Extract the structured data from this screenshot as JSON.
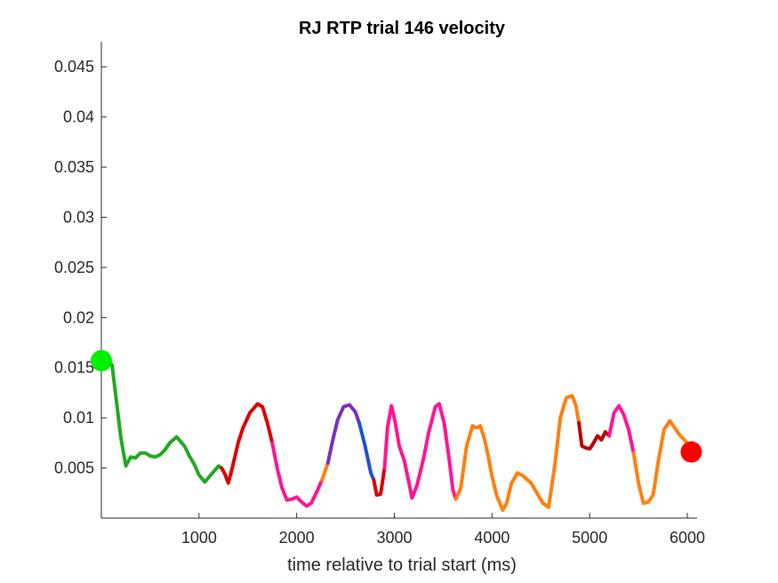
{
  "chart_data": {
    "type": "line",
    "title": "RJ  RTP trial 146 velocity",
    "xlabel": "time relative to trial start (ms)",
    "ylabel": "",
    "xlim": [
      0,
      6100
    ],
    "ylim": [
      0,
      0.0475
    ],
    "x_ticks": [
      1000,
      2000,
      3000,
      4000,
      5000,
      6000
    ],
    "x_tick_labels": [
      "1000",
      "2000",
      "3000",
      "4000",
      "5000",
      "6000"
    ],
    "y_ticks": [
      0.005,
      0.01,
      0.015,
      0.02,
      0.025,
      0.03,
      0.035,
      0.04,
      0.045
    ],
    "y_tick_labels": [
      "0.005",
      "0.01",
      "0.015",
      "0.02",
      "0.025",
      "0.03",
      "0.035",
      "0.04",
      "0.045"
    ],
    "grid": false,
    "axes_box": "left-bottom",
    "segments": [
      {
        "color": "#22a822",
        "points": [
          [
            0,
            0.0157
          ],
          [
            60,
            0.0161
          ],
          [
            110,
            0.0152
          ],
          [
            150,
            0.012
          ],
          [
            200,
            0.008
          ],
          [
            250,
            0.0052
          ],
          [
            300,
            0.0061
          ],
          [
            350,
            0.006
          ],
          [
            400,
            0.0065
          ],
          [
            450,
            0.0065
          ],
          [
            500,
            0.0062
          ],
          [
            550,
            0.0061
          ],
          [
            600,
            0.0063
          ],
          [
            650,
            0.0068
          ],
          [
            700,
            0.0075
          ],
          [
            770,
            0.0081
          ],
          [
            850,
            0.0072
          ],
          [
            900,
            0.0062
          ],
          [
            950,
            0.0054
          ],
          [
            1000,
            0.0043
          ],
          [
            1060,
            0.0036
          ],
          [
            1120,
            0.0043
          ],
          [
            1200,
            0.0052
          ],
          [
            1230,
            0.005
          ]
        ]
      },
      {
        "color": "#dd0000",
        "points": [
          [
            1230,
            0.005
          ],
          [
            1260,
            0.0045
          ],
          [
            1300,
            0.0035
          ],
          [
            1340,
            0.005
          ],
          [
            1400,
            0.0075
          ],
          [
            1450,
            0.009
          ]
        ]
      },
      {
        "color": "#dd0000",
        "points": [
          [
            1450,
            0.009
          ],
          [
            1520,
            0.0105
          ],
          [
            1600,
            0.0114
          ],
          [
            1650,
            0.0111
          ],
          [
            1700,
            0.0095
          ],
          [
            1750,
            0.0075
          ]
        ]
      },
      {
        "color": "#ff1493",
        "points": [
          [
            1750,
            0.0075
          ],
          [
            1800,
            0.005
          ],
          [
            1850,
            0.003
          ],
          [
            1900,
            0.0018
          ],
          [
            1950,
            0.0019
          ],
          [
            2000,
            0.0021
          ],
          [
            2050,
            0.0016
          ],
          [
            2100,
            0.0012
          ],
          [
            2150,
            0.0015
          ],
          [
            2200,
            0.0025
          ],
          [
            2260,
            0.0038
          ]
        ]
      },
      {
        "color": "#ff7f0e",
        "points": [
          [
            2260,
            0.0038
          ],
          [
            2320,
            0.0055
          ]
        ]
      },
      {
        "color": "#7b2fbe",
        "points": [
          [
            2320,
            0.0055
          ],
          [
            2370,
            0.0078
          ],
          [
            2420,
            0.0098
          ],
          [
            2480,
            0.0111
          ],
          [
            2540,
            0.0113
          ],
          [
            2600,
            0.0106
          ],
          [
            2640,
            0.0095
          ]
        ]
      },
      {
        "color": "#1f4fd8",
        "points": [
          [
            2640,
            0.0095
          ],
          [
            2700,
            0.0072
          ],
          [
            2760,
            0.0045
          ],
          [
            2790,
            0.0038
          ]
        ]
      },
      {
        "color": "#dd0000",
        "points": [
          [
            2790,
            0.0038
          ],
          [
            2820,
            0.0023
          ],
          [
            2860,
            0.0024
          ],
          [
            2900,
            0.005
          ]
        ]
      },
      {
        "color": "#ff1493",
        "points": [
          [
            2900,
            0.005
          ],
          [
            2930,
            0.009
          ],
          [
            2970,
            0.0112
          ],
          [
            3010,
            0.0095
          ],
          [
            3050,
            0.0072
          ],
          [
            3100,
            0.0058
          ],
          [
            3150,
            0.0035
          ],
          [
            3180,
            0.002
          ],
          [
            3230,
            0.0032
          ],
          [
            3300,
            0.006
          ],
          [
            3350,
            0.0085
          ],
          [
            3420,
            0.0111
          ],
          [
            3460,
            0.0114
          ],
          [
            3510,
            0.0095
          ],
          [
            3560,
            0.006
          ],
          [
            3600,
            0.0028
          ],
          [
            3630,
            0.0019
          ]
        ]
      },
      {
        "color": "#ff7f0e",
        "points": [
          [
            3630,
            0.0019
          ],
          [
            3680,
            0.003
          ],
          [
            3740,
            0.0072
          ],
          [
            3800,
            0.0092
          ],
          [
            3840,
            0.009
          ],
          [
            3880,
            0.0092
          ],
          [
            3920,
            0.008
          ],
          [
            3960,
            0.0062
          ],
          [
            4000,
            0.0042
          ],
          [
            4050,
            0.0022
          ],
          [
            4110,
            0.0008
          ],
          [
            4150,
            0.0015
          ],
          [
            4200,
            0.0035
          ],
          [
            4260,
            0.0045
          ],
          [
            4320,
            0.0042
          ],
          [
            4400,
            0.0035
          ],
          [
            4460,
            0.0025
          ],
          [
            4520,
            0.0015
          ],
          [
            4580,
            0.0011
          ],
          [
            4640,
            0.005
          ],
          [
            4700,
            0.01
          ],
          [
            4760,
            0.012
          ],
          [
            4820,
            0.0122
          ],
          [
            4860,
            0.0112
          ],
          [
            4890,
            0.0095
          ]
        ]
      },
      {
        "color": "#bb0000",
        "points": [
          [
            4890,
            0.0095
          ],
          [
            4920,
            0.0072
          ],
          [
            4960,
            0.007
          ],
          [
            5000,
            0.0069
          ],
          [
            5040,
            0.0075
          ],
          [
            5080,
            0.0082
          ],
          [
            5120,
            0.0078
          ],
          [
            5160,
            0.0086
          ],
          [
            5200,
            0.0082
          ]
        ]
      },
      {
        "color": "#ff1493",
        "points": [
          [
            5200,
            0.0082
          ],
          [
            5250,
            0.0105
          ],
          [
            5300,
            0.0112
          ],
          [
            5350,
            0.0103
          ],
          [
            5400,
            0.0088
          ],
          [
            5450,
            0.0065
          ]
        ]
      },
      {
        "color": "#ff7f0e",
        "points": [
          [
            5450,
            0.0065
          ],
          [
            5500,
            0.0035
          ],
          [
            5550,
            0.0015
          ],
          [
            5600,
            0.0016
          ],
          [
            5650,
            0.0023
          ],
          [
            5700,
            0.0055
          ],
          [
            5760,
            0.0088
          ],
          [
            5820,
            0.0097
          ],
          [
            5870,
            0.009
          ],
          [
            5930,
            0.0082
          ],
          [
            5980,
            0.0077
          ],
          [
            6040,
            0.0067
          ]
        ]
      }
    ],
    "markers": [
      {
        "name": "start",
        "x": 0,
        "y": 0.0157,
        "color": "#00ee00"
      },
      {
        "name": "end",
        "x": 6040,
        "y": 0.0066,
        "color": "#ff0000"
      }
    ]
  }
}
